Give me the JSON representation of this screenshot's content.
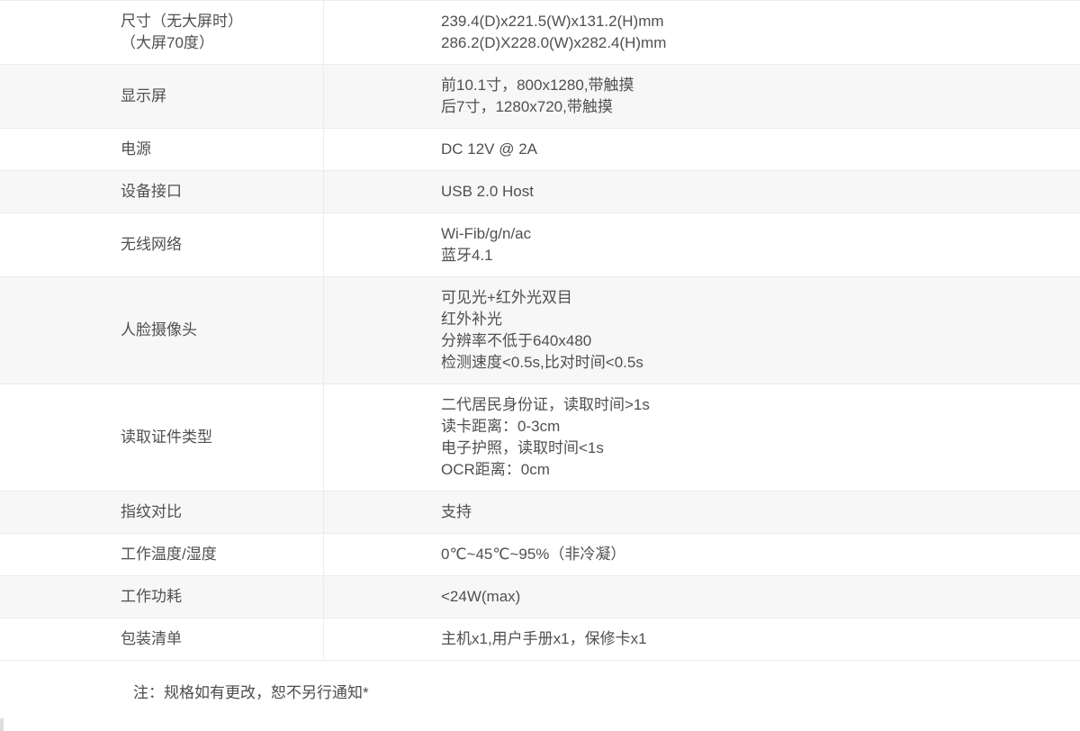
{
  "table": {
    "rows": [
      {
        "label_lines": [
          "尺寸（无大屏时）",
          "（大屏70度）"
        ],
        "value_lines": [
          "239.4(D)x221.5(W)x131.2(H)mm",
          "286.2(D)X228.0(W)x282.4(H)mm"
        ]
      },
      {
        "label_lines": [
          "显示屏"
        ],
        "value_lines": [
          "前10.1寸，800x1280,带触摸",
          "后7寸，1280x720,带触摸"
        ]
      },
      {
        "label_lines": [
          "电源"
        ],
        "value_lines": [
          "DC 12V @ 2A"
        ]
      },
      {
        "label_lines": [
          "设备接口"
        ],
        "value_lines": [
          "USB 2.0 Host"
        ]
      },
      {
        "label_lines": [
          "无线网络"
        ],
        "value_lines": [
          "Wi-Fib/g/n/ac",
          "蓝牙4.1"
        ]
      },
      {
        "label_lines": [
          "人脸摄像头"
        ],
        "value_lines": [
          "可见光+红外光双目",
          "红外补光",
          "分辨率不低于640x480",
          "检测速度<0.5s,比对时间<0.5s"
        ]
      },
      {
        "label_lines": [
          "读取证件类型"
        ],
        "value_lines": [
          "二代居民身份证，读取时间>1s",
          "读卡距离：0-3cm",
          "电子护照，读取时间<1s",
          "OCR距离：0cm"
        ]
      },
      {
        "label_lines": [
          "指纹对比"
        ],
        "value_lines": [
          "支持"
        ]
      },
      {
        "label_lines": [
          "工作温度/湿度"
        ],
        "value_lines": [
          "0℃~45℃~95%（非冷凝）"
        ]
      },
      {
        "label_lines": [
          "工作功耗"
        ],
        "value_lines": [
          "<24W(max)"
        ]
      },
      {
        "label_lines": [
          "包装清单"
        ],
        "value_lines": [
          "主机x1,用户手册x1，保修卡x1"
        ]
      }
    ]
  },
  "footer": {
    "note": "注：规格如有更改，恕不另行通知*"
  },
  "colors": {
    "row_alt_bg": "#f7f7f7",
    "border": "#ececec",
    "text": "#505050"
  }
}
